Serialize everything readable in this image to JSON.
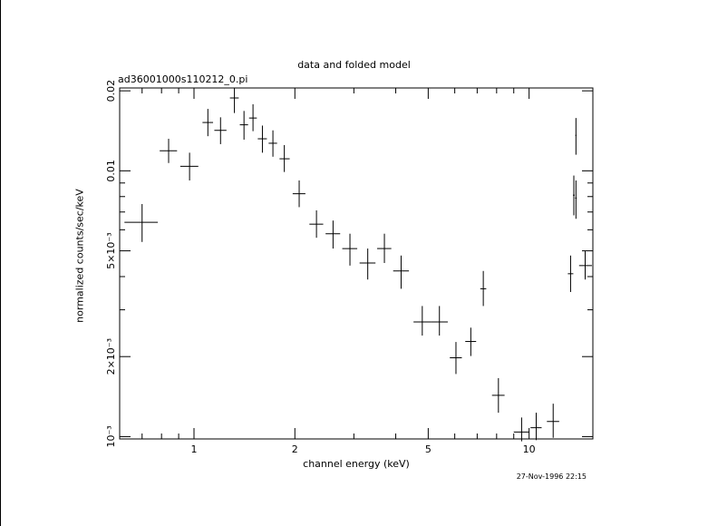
{
  "chart_data": {
    "type": "scatter",
    "title": "data and folded model",
    "subtitle": "ad36001000s110212_0.pi",
    "xlabel": "channel energy (keV)",
    "ylabel": "normalized counts/sec/keV",
    "x_scale": "log",
    "y_scale": "log",
    "xlim": [
      0.6,
      15.5
    ],
    "ylim": [
      0.00098,
      0.0205
    ],
    "grid": false,
    "x_ticks": [
      {
        "value": 1,
        "label": "1"
      },
      {
        "value": 2,
        "label": "2"
      },
      {
        "value": 5,
        "label": "5"
      },
      {
        "value": 10,
        "label": "10"
      }
    ],
    "y_ticks": [
      {
        "value": 0.001,
        "label": "10⁻³"
      },
      {
        "value": 0.002,
        "label": "2×10⁻³"
      },
      {
        "value": 0.005,
        "label": "5×10⁻³"
      },
      {
        "value": 0.01,
        "label": "0.01"
      },
      {
        "value": 0.02,
        "label": "0.02"
      }
    ],
    "series": [
      {
        "points": [
          {
            "x": 0.7,
            "xlo": 0.62,
            "xhi": 0.78,
            "y": 0.0064,
            "ylo": 0.0054,
            "yhi": 0.0075
          },
          {
            "x": 0.84,
            "xlo": 0.79,
            "xhi": 0.89,
            "y": 0.0119,
            "ylo": 0.0107,
            "yhi": 0.0132
          },
          {
            "x": 0.97,
            "xlo": 0.91,
            "xhi": 1.03,
            "y": 0.0104,
            "ylo": 0.0092,
            "yhi": 0.0117
          },
          {
            "x": 1.1,
            "xlo": 1.06,
            "xhi": 1.14,
            "y": 0.0152,
            "ylo": 0.0135,
            "yhi": 0.0171
          },
          {
            "x": 1.2,
            "xlo": 1.15,
            "xhi": 1.25,
            "y": 0.0142,
            "ylo": 0.0126,
            "yhi": 0.0159
          },
          {
            "x": 1.32,
            "xlo": 1.28,
            "xhi": 1.36,
            "y": 0.0188,
            "ylo": 0.0165,
            "yhi": 0.0205
          },
          {
            "x": 1.41,
            "xlo": 1.37,
            "xhi": 1.45,
            "y": 0.0149,
            "ylo": 0.0131,
            "yhi": 0.0168
          },
          {
            "x": 1.5,
            "xlo": 1.46,
            "xhi": 1.54,
            "y": 0.0158,
            "ylo": 0.0141,
            "yhi": 0.0178
          },
          {
            "x": 1.6,
            "xlo": 1.55,
            "xhi": 1.65,
            "y": 0.0132,
            "ylo": 0.0117,
            "yhi": 0.0148
          },
          {
            "x": 1.72,
            "xlo": 1.67,
            "xhi": 1.77,
            "y": 0.0127,
            "ylo": 0.0113,
            "yhi": 0.0142
          },
          {
            "x": 1.86,
            "xlo": 1.8,
            "xhi": 1.93,
            "y": 0.0111,
            "ylo": 0.0099,
            "yhi": 0.0125
          },
          {
            "x": 2.06,
            "xlo": 1.97,
            "xhi": 2.15,
            "y": 0.0082,
            "ylo": 0.0073,
            "yhi": 0.0092
          },
          {
            "x": 2.32,
            "xlo": 2.21,
            "xhi": 2.43,
            "y": 0.0063,
            "ylo": 0.0056,
            "yhi": 0.0071
          },
          {
            "x": 2.6,
            "xlo": 2.47,
            "xhi": 2.73,
            "y": 0.0058,
            "ylo": 0.0051,
            "yhi": 0.0065
          },
          {
            "x": 2.92,
            "xlo": 2.77,
            "xhi": 3.07,
            "y": 0.0051,
            "ylo": 0.0044,
            "yhi": 0.0058
          },
          {
            "x": 3.3,
            "xlo": 3.12,
            "xhi": 3.48,
            "y": 0.0045,
            "ylo": 0.0039,
            "yhi": 0.0051
          },
          {
            "x": 3.7,
            "xlo": 3.52,
            "xhi": 3.88,
            "y": 0.0051,
            "ylo": 0.0045,
            "yhi": 0.0058
          },
          {
            "x": 4.15,
            "xlo": 3.93,
            "xhi": 4.38,
            "y": 0.0042,
            "ylo": 0.0036,
            "yhi": 0.0048
          },
          {
            "x": 4.8,
            "xlo": 4.52,
            "xhi": 5.1,
            "y": 0.0027,
            "ylo": 0.0024,
            "yhi": 0.0031
          },
          {
            "x": 5.4,
            "xlo": 5.1,
            "xhi": 5.72,
            "y": 0.0027,
            "ylo": 0.0024,
            "yhi": 0.0031
          },
          {
            "x": 6.05,
            "xlo": 5.8,
            "xhi": 6.3,
            "y": 0.00198,
            "ylo": 0.00172,
            "yhi": 0.00227
          },
          {
            "x": 6.7,
            "xlo": 6.45,
            "xhi": 6.95,
            "y": 0.00228,
            "ylo": 0.00201,
            "yhi": 0.00257
          },
          {
            "x": 7.3,
            "xlo": 7.15,
            "xhi": 7.45,
            "y": 0.0036,
            "ylo": 0.0031,
            "yhi": 0.0042
          },
          {
            "x": 8.1,
            "xlo": 7.75,
            "xhi": 8.45,
            "y": 0.00143,
            "ylo": 0.00123,
            "yhi": 0.00166
          },
          {
            "x": 9.5,
            "xlo": 9.0,
            "xhi": 10.0,
            "y": 0.00104,
            "ylo": 0.00096,
            "yhi": 0.00118
          },
          {
            "x": 10.5,
            "xlo": 10.1,
            "xhi": 10.9,
            "y": 0.00108,
            "ylo": 0.00097,
            "yhi": 0.00123
          },
          {
            "x": 11.8,
            "xlo": 11.3,
            "xhi": 12.3,
            "y": 0.00114,
            "ylo": 0.00099,
            "yhi": 0.00133
          },
          {
            "x": 13.3,
            "xlo": 13.05,
            "xhi": 13.55,
            "y": 0.0041,
            "ylo": 0.0035,
            "yhi": 0.0048
          },
          {
            "x": 13.6,
            "xlo": 13.52,
            "xhi": 13.68,
            "y": 0.0081,
            "ylo": 0.0068,
            "yhi": 0.0096
          },
          {
            "x": 13.8,
            "xlo": 13.72,
            "xhi": 13.88,
            "y": 0.0079,
            "ylo": 0.0066,
            "yhi": 0.0092
          },
          {
            "x": 13.8,
            "xlo": 13.74,
            "xhi": 13.86,
            "y": 0.0136,
            "ylo": 0.0115,
            "yhi": 0.0158
          },
          {
            "x": 14.7,
            "xlo": 14.1,
            "xhi": 15.4,
            "y": 0.0044,
            "ylo": 0.0039,
            "yhi": 0.005
          }
        ]
      }
    ]
  },
  "footer": {
    "timestamp": "27-Nov-1996 22:15"
  }
}
